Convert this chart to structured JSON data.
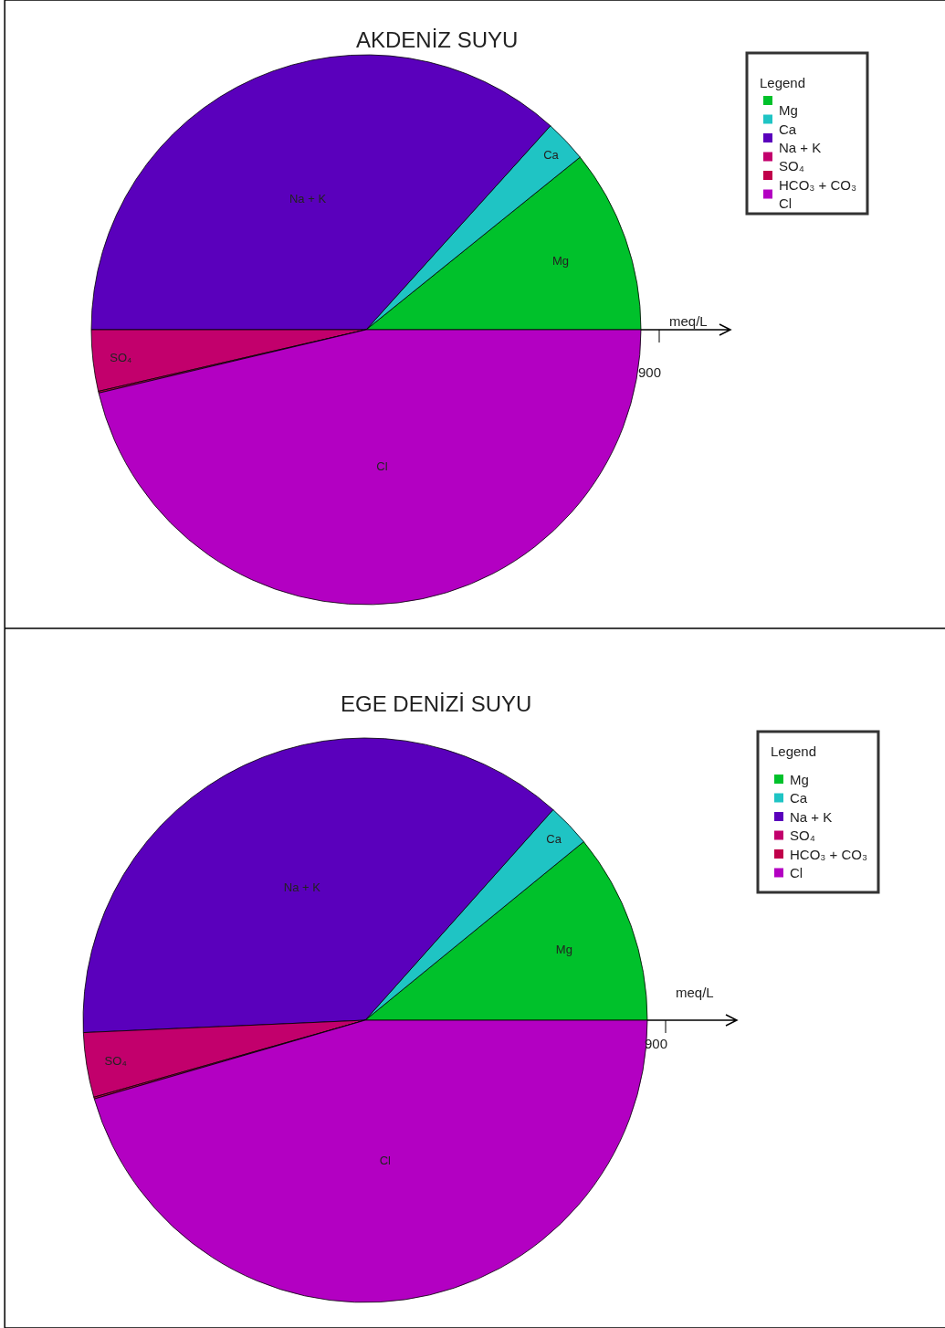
{
  "chart_data": [
    {
      "type": "pie",
      "title": "AKDENİZ SUYU",
      "legend_title": "Legend",
      "legend": "top right",
      "categories": [
        "Mg",
        "Ca",
        "Na + K",
        "SO₄",
        "HCO₃ + CO₃",
        "Cl"
      ],
      "values": [
        10.8,
        2.5,
        36.7,
        3.6,
        0.1,
        46.3
      ],
      "colors": [
        "#00c12b",
        "#1fc4c4",
        "#5a00bc",
        "#c2006c",
        "#c0004a",
        "#b300c2"
      ],
      "annotations": [
        "meq/L",
        "900"
      ]
    },
    {
      "type": "pie",
      "title": "EGE DENİZİ SUYU",
      "legend_title": "Legend",
      "legend": "top right",
      "categories": [
        "Mg",
        "Ca",
        "Na + K",
        "SO₄",
        "HCO₃ + CO₃",
        "Cl"
      ],
      "values": [
        10.9,
        2.5,
        37.3,
        3.7,
        0.1,
        45.5
      ],
      "colors": [
        "#00c12b",
        "#1fc4c4",
        "#5a00bc",
        "#c2006c",
        "#c0004a",
        "#b300c2"
      ],
      "annotations": [
        "meq/L",
        "900"
      ]
    }
  ]
}
